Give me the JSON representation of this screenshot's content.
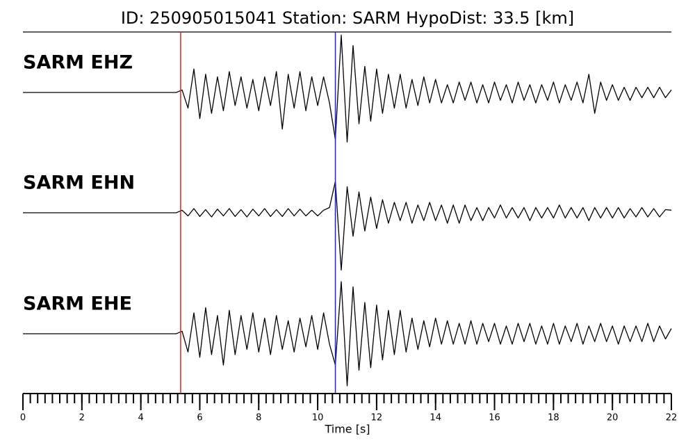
{
  "chart_data": {
    "type": "seismogram",
    "title": "ID: 250905015041   Station: SARM   HypoDist:    33.5 [km]",
    "xlabel": "Time [s]",
    "xlim": [
      0,
      22
    ],
    "xticks": [
      0,
      2,
      4,
      6,
      8,
      10,
      12,
      14,
      16,
      18,
      20,
      22
    ],
    "xminor_step": 0.25,
    "ylim": [
      -1,
      1
    ],
    "label_color": "#4e9a06",
    "picks": [
      {
        "time": 5.35,
        "color": "#e8211c"
      },
      {
        "time": 10.6,
        "color": "#2222cc"
      }
    ],
    "x": [
      0,
      0.2,
      0.4,
      0.6,
      0.8,
      1,
      1.2,
      1.4,
      1.6,
      1.8,
      2,
      2.2,
      2.4,
      2.6,
      2.8,
      3,
      3.2,
      3.4,
      3.6,
      3.8,
      4,
      4.2,
      4.4,
      4.6,
      4.8,
      5,
      5.2,
      5.4,
      5.6,
      5.8,
      6,
      6.2,
      6.4,
      6.6,
      6.8,
      7,
      7.2,
      7.4,
      7.6,
      7.8,
      8,
      8.2,
      8.4,
      8.6,
      8.8,
      9,
      9.2,
      9.4,
      9.6,
      9.8,
      10,
      10.2,
      10.4,
      10.6,
      10.8,
      11,
      11.2,
      11.4,
      11.6,
      11.8,
      12,
      12.2,
      12.4,
      12.6,
      12.8,
      13,
      13.2,
      13.4,
      13.6,
      13.8,
      14,
      14.2,
      14.4,
      14.6,
      14.8,
      15,
      15.2,
      15.4,
      15.6,
      15.8,
      16,
      16.2,
      16.4,
      16.6,
      16.8,
      17,
      17.2,
      17.4,
      17.6,
      17.8,
      18,
      18.2,
      18.4,
      18.6,
      18.8,
      19,
      19.2,
      19.4,
      19.6,
      19.8,
      20,
      20.2,
      20.4,
      20.6,
      20.8,
      21,
      21.2,
      21.4,
      21.6,
      21.8,
      22
    ],
    "series": [
      {
        "name": "SARM EHZ",
        "color": "#000000",
        "values": [
          0,
          0,
          0,
          0,
          0,
          0,
          0,
          0,
          0,
          0,
          0,
          0,
          0,
          0,
          0,
          0,
          0,
          0,
          0,
          0,
          0,
          0,
          0,
          0,
          0,
          0,
          0,
          0.05,
          -0.3,
          0.45,
          -0.5,
          0.35,
          -0.4,
          0.3,
          -0.35,
          0.4,
          -0.25,
          0.3,
          -0.3,
          0.25,
          -0.35,
          0.3,
          -0.25,
          0.4,
          -0.7,
          0.35,
          -0.3,
          0.4,
          -0.35,
          0.3,
          -0.25,
          0.3,
          -0.2,
          -0.9,
          1.1,
          -0.95,
          0.9,
          -0.6,
          0.5,
          -0.55,
          0.45,
          -0.4,
          0.35,
          -0.3,
          0.35,
          -0.3,
          0.25,
          -0.25,
          0.3,
          -0.2,
          0.25,
          -0.2,
          0.15,
          -0.2,
          0.2,
          -0.15,
          0.2,
          -0.2,
          0.15,
          -0.2,
          0.2,
          -0.15,
          0.15,
          -0.2,
          0.2,
          -0.15,
          0.15,
          -0.2,
          0.15,
          -0.15,
          0.2,
          -0.2,
          0.15,
          -0.15,
          0.2,
          -0.2,
          0.35,
          -0.4,
          0.2,
          -0.15,
          0.15,
          -0.15,
          0.1,
          -0.15,
          0.1,
          -0.1,
          0.1,
          -0.1,
          0.1,
          -0.1,
          0.05
        ]
      },
      {
        "name": "SARM EHN",
        "color": "#000000",
        "values": [
          0,
          0,
          0,
          0,
          0,
          0,
          0,
          0,
          0,
          0,
          0,
          0,
          0,
          0,
          0,
          0,
          0,
          0,
          0,
          0,
          0,
          0,
          0,
          0,
          0,
          0,
          0,
          0.05,
          -0.06,
          0.08,
          -0.07,
          0.06,
          -0.08,
          0.07,
          -0.06,
          0.08,
          -0.07,
          0.06,
          -0.08,
          0.07,
          -0.06,
          0.08,
          -0.07,
          0.06,
          -0.07,
          0.08,
          -0.06,
          0.07,
          -0.06,
          0.05,
          -0.06,
          0.05,
          0.1,
          0.6,
          -1.1,
          0.5,
          -0.45,
          0.4,
          -0.35,
          0.3,
          -0.3,
          0.25,
          -0.2,
          0.2,
          -0.15,
          0.2,
          -0.2,
          0.15,
          -0.15,
          0.2,
          -0.15,
          0.15,
          -0.2,
          0.15,
          -0.2,
          0.15,
          -0.15,
          0.1,
          -0.15,
          0.1,
          -0.1,
          0.15,
          -0.1,
          0.1,
          -0.1,
          0.1,
          -0.15,
          0.1,
          -0.1,
          0.1,
          -0.1,
          0.15,
          -0.1,
          0.1,
          -0.1,
          0.1,
          -0.15,
          0.1,
          -0.1,
          0.1,
          -0.1,
          0.1,
          -0.1,
          0.08,
          -0.08,
          0.1,
          -0.08,
          0.08,
          -0.08,
          0.06,
          0.05
        ]
      },
      {
        "name": "SARM EHE",
        "color": "#000000",
        "values": [
          0,
          0,
          0,
          0,
          0,
          0,
          0,
          0,
          0,
          0,
          0,
          0,
          0,
          0,
          0,
          0,
          0,
          0,
          0,
          0,
          0,
          0,
          0,
          0,
          0,
          0,
          0,
          0.05,
          -0.35,
          0.4,
          -0.45,
          0.5,
          -0.4,
          0.35,
          -0.6,
          0.45,
          -0.4,
          0.35,
          -0.3,
          0.4,
          -0.35,
          0.3,
          -0.4,
          0.35,
          -0.3,
          0.25,
          -0.35,
          0.3,
          -0.25,
          0.35,
          -0.3,
          0.4,
          -0.2,
          -0.6,
          1.0,
          -1.0,
          0.9,
          -0.7,
          0.6,
          -0.65,
          0.55,
          -0.5,
          0.45,
          -0.4,
          0.45,
          -0.35,
          0.3,
          -0.3,
          0.25,
          -0.25,
          0.3,
          -0.2,
          0.25,
          -0.2,
          0.2,
          -0.2,
          0.25,
          -0.2,
          0.2,
          -0.15,
          0.2,
          -0.2,
          0.15,
          -0.2,
          0.2,
          -0.15,
          0.2,
          -0.2,
          0.15,
          -0.2,
          0.2,
          -0.2,
          0.15,
          -0.15,
          0.2,
          -0.2,
          0.15,
          -0.15,
          0.2,
          -0.15,
          0.15,
          -0.2,
          0.15,
          -0.15,
          0.15,
          -0.15,
          0.2,
          -0.15,
          0.15,
          -0.1,
          0.1
        ]
      }
    ]
  }
}
